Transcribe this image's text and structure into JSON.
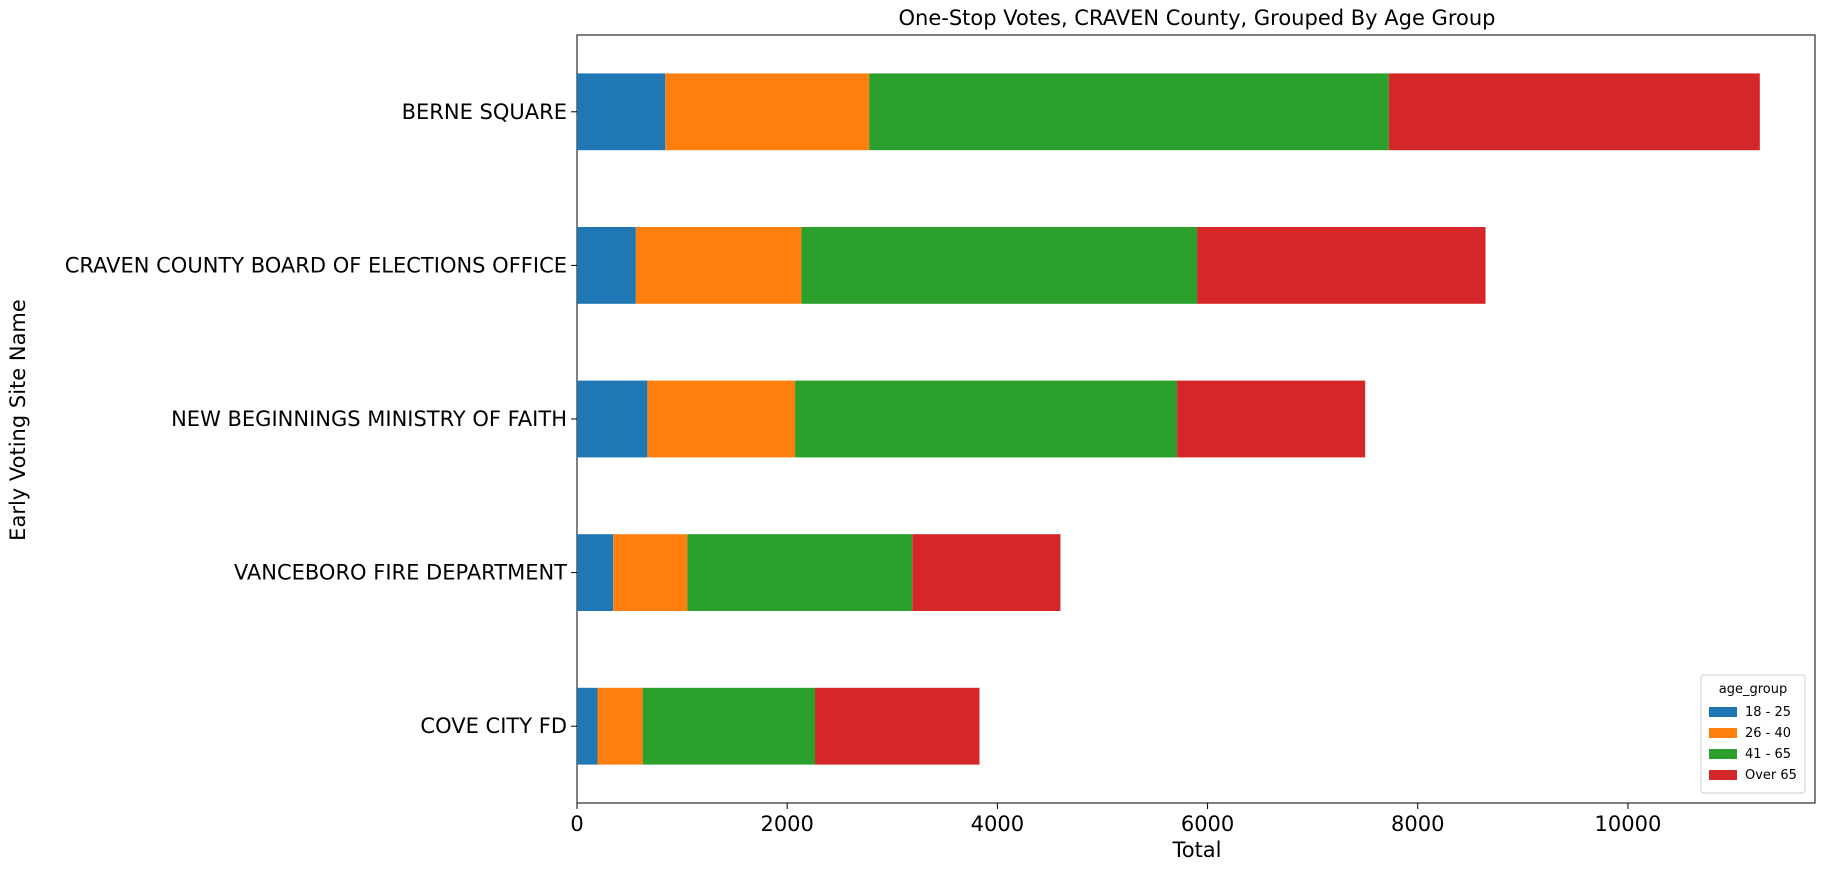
{
  "chart_data": {
    "type": "bar",
    "orientation": "horizontal",
    "stacked": true,
    "title": "One-Stop Votes, CRAVEN County, Grouped By Age Group",
    "xlabel": "Total",
    "ylabel": "Early Voting Site Name",
    "xlim": [
      0,
      11780
    ],
    "xticks": [
      0,
      2000,
      4000,
      6000,
      8000,
      10000
    ],
    "grid": false,
    "categories": [
      "COVE CITY FD",
      "VANCEBORO FIRE DEPARTMENT",
      "NEW BEGINNINGS MINISTRY OF FAITH",
      "CRAVEN COUNTY BOARD OF ELECTIONS OFFICE",
      "BERNE  SQUARE"
    ],
    "series": [
      {
        "name": "18 - 25",
        "color": "#1f77b4",
        "values": [
          195,
          345,
          670,
          560,
          840
        ]
      },
      {
        "name": "26 - 40",
        "color": "#ff7f0e",
        "values": [
          430,
          705,
          1405,
          1575,
          1940
        ]
      },
      {
        "name": "41 - 65",
        "color": "#2ca02c",
        "values": [
          1640,
          2140,
          3635,
          3765,
          4945
        ]
      },
      {
        "name": "Over 65",
        "color": "#d62728",
        "values": [
          1565,
          1410,
          1790,
          2745,
          3530
        ]
      }
    ],
    "legend": {
      "title": "age_group",
      "position": "lower-right"
    }
  }
}
